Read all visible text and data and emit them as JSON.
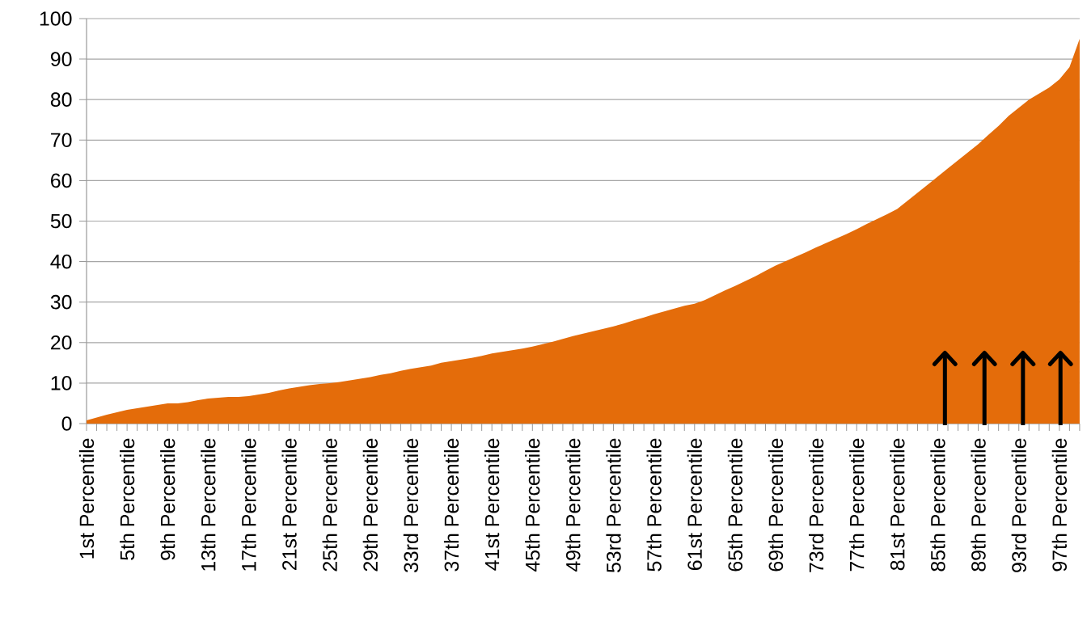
{
  "chart_data": {
    "type": "area",
    "categories": [
      "1st Percentile",
      null,
      null,
      null,
      "5th Percentile",
      null,
      null,
      null,
      "9th Percentile",
      null,
      null,
      null,
      "13th Percentile",
      null,
      null,
      null,
      "17th Percentile",
      null,
      null,
      null,
      "21st Percentile",
      null,
      null,
      null,
      "25th Percentile",
      null,
      null,
      null,
      "29th Percentile",
      null,
      null,
      null,
      "33rd Percentile",
      null,
      null,
      null,
      "37th Percentile",
      null,
      null,
      null,
      "41st Percentile",
      null,
      null,
      null,
      "45th Percentile",
      null,
      null,
      null,
      "49th Percentile",
      null,
      null,
      null,
      "53rd Percentile",
      null,
      null,
      null,
      "57th Percentile",
      null,
      null,
      null,
      "61st Percentile",
      null,
      null,
      null,
      "65th Percentile",
      null,
      null,
      null,
      "69th Percentile",
      null,
      null,
      null,
      "73rd Percentile",
      null,
      null,
      null,
      "77th Percentile",
      null,
      null,
      null,
      "81st Percentile",
      null,
      null,
      null,
      "85th Percentile",
      null,
      null,
      null,
      "89th Percentile",
      null,
      null,
      null,
      "93rd Percentile",
      null,
      null,
      null,
      "97th Percentile",
      null,
      null
    ],
    "values": [
      0.8,
      1.5,
      2.2,
      2.8,
      3.4,
      3.8,
      4.2,
      4.6,
      5,
      5,
      5.3,
      5.8,
      6.2,
      6.4,
      6.6,
      6.6,
      6.8,
      7.2,
      7.6,
      8.2,
      8.7,
      9.1,
      9.5,
      9.8,
      10,
      10.3,
      10.7,
      11.1,
      11.5,
      12,
      12.4,
      13,
      13.5,
      13.9,
      14.3,
      15,
      15.4,
      15.8,
      16.2,
      16.7,
      17.3,
      17.7,
      18.1,
      18.5,
      19,
      19.6,
      20.2,
      20.9,
      21.6,
      22.2,
      22.8,
      23.4,
      24,
      24.7,
      25.5,
      26.2,
      27,
      27.7,
      28.4,
      29.1,
      29.6,
      30.5,
      31.7,
      32.9,
      34,
      35.2,
      36.4,
      37.7,
      39,
      40.1,
      41.2,
      42.3,
      43.5,
      44.6,
      45.7,
      46.8,
      48,
      49.3,
      50.5,
      51.7,
      53,
      55,
      57,
      59,
      61,
      63,
      65,
      67,
      69,
      71.3,
      73.5,
      76,
      78,
      80,
      81.5,
      83,
      85,
      88,
      95
    ],
    "color": "#e46c0a",
    "ylim": [
      0,
      100
    ],
    "yticks": [
      0,
      10,
      20,
      30,
      40,
      50,
      60,
      70,
      80,
      90,
      100
    ],
    "grid": "y"
  }
}
